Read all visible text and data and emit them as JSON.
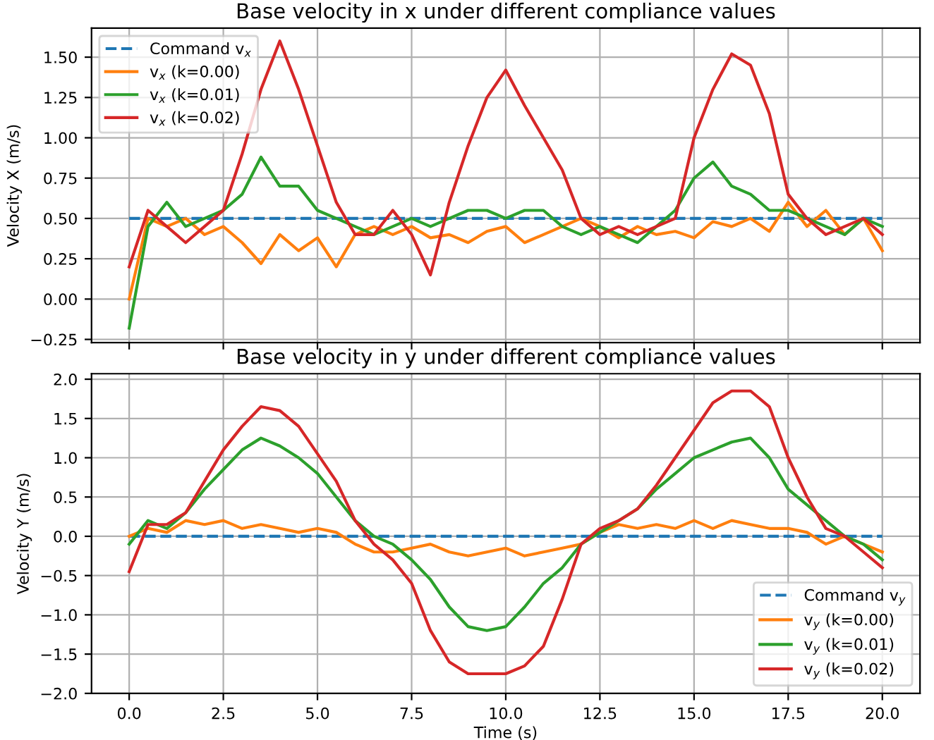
{
  "chart_data": [
    {
      "type": "line",
      "title": "Base velocity in x under different compliance values",
      "ylabel": "Velocity X (m/s)",
      "x": [
        0,
        0.5,
        1,
        1.5,
        2,
        2.5,
        3,
        3.5,
        4,
        4.5,
        5,
        5.5,
        6,
        6.5,
        7,
        7.5,
        8,
        8.5,
        9,
        9.5,
        10,
        10.5,
        11,
        11.5,
        12,
        12.5,
        13,
        13.5,
        14,
        14.5,
        15,
        15.5,
        16,
        16.5,
        17,
        17.5,
        18,
        18.5,
        19,
        19.5,
        20
      ],
      "series": [
        {
          "name": "Command v$_{x}$",
          "color": "#1f77b4",
          "line_style": "dashed",
          "values": [
            0.5,
            0.5,
            0.5,
            0.5,
            0.5,
            0.5,
            0.5,
            0.5,
            0.5,
            0.5,
            0.5,
            0.5,
            0.5,
            0.5,
            0.5,
            0.5,
            0.5,
            0.5,
            0.5,
            0.5,
            0.5,
            0.5,
            0.5,
            0.5,
            0.5,
            0.5,
            0.5,
            0.5,
            0.5,
            0.5,
            0.5,
            0.5,
            0.5,
            0.5,
            0.5,
            0.5,
            0.5,
            0.5,
            0.5,
            0.5,
            0.5
          ]
        },
        {
          "name": "v$_{x}$ (k=0.00)",
          "color": "#ff7f0e",
          "values": [
            0.0,
            0.5,
            0.45,
            0.5,
            0.4,
            0.45,
            0.35,
            0.22,
            0.4,
            0.3,
            0.38,
            0.2,
            0.4,
            0.45,
            0.4,
            0.45,
            0.38,
            0.4,
            0.35,
            0.42,
            0.45,
            0.35,
            0.4,
            0.45,
            0.5,
            0.45,
            0.38,
            0.45,
            0.4,
            0.42,
            0.38,
            0.48,
            0.45,
            0.5,
            0.42,
            0.6,
            0.45,
            0.55,
            0.4,
            0.5,
            0.3
          ]
        },
        {
          "name": "v$_{x}$ (k=0.01)",
          "color": "#2ca02c",
          "values": [
            -0.18,
            0.45,
            0.6,
            0.45,
            0.5,
            0.55,
            0.65,
            0.88,
            0.7,
            0.7,
            0.55,
            0.5,
            0.45,
            0.4,
            0.45,
            0.5,
            0.45,
            0.5,
            0.55,
            0.55,
            0.5,
            0.55,
            0.55,
            0.45,
            0.4,
            0.45,
            0.4,
            0.35,
            0.45,
            0.55,
            0.75,
            0.85,
            0.7,
            0.65,
            0.55,
            0.55,
            0.5,
            0.45,
            0.4,
            0.5,
            0.45
          ]
        },
        {
          "name": "v$_{x}$ (k=0.02)",
          "color": "#d62728",
          "values": [
            0.2,
            0.55,
            0.45,
            0.35,
            0.45,
            0.55,
            0.9,
            1.3,
            1.6,
            1.3,
            0.95,
            0.6,
            0.4,
            0.4,
            0.55,
            0.4,
            0.15,
            0.6,
            0.95,
            1.25,
            1.42,
            1.2,
            1.0,
            0.8,
            0.5,
            0.4,
            0.45,
            0.4,
            0.45,
            0.5,
            1.0,
            1.3,
            1.52,
            1.45,
            1.15,
            0.65,
            0.5,
            0.4,
            0.45,
            0.5,
            0.4
          ]
        }
      ],
      "xlim": [
        -1,
        21
      ],
      "xticks": [
        0,
        2.5,
        5,
        7.5,
        10,
        12.5,
        15,
        17.5,
        20
      ],
      "ylim": [
        -0.27,
        1.68
      ],
      "yticks": [
        {
          "value": -0.25,
          "label": "−0.25"
        },
        {
          "value": 0,
          "label": "0.00"
        },
        0.25,
        {
          "value": 0.5,
          "label": "0.50"
        },
        0.75,
        {
          "value": 1,
          "label": "1.00"
        },
        1.25,
        {
          "value": 1.5,
          "label": "1.50"
        }
      ],
      "tick_labels": "y",
      "grid": true,
      "legend": "top left"
    },
    {
      "type": "line",
      "title": "Base velocity in y under different compliance values",
      "ylabel": "Velocity Y (m/s)",
      "xlabel": "Time (s)",
      "x": [
        0,
        0.5,
        1,
        1.5,
        2,
        2.5,
        3,
        3.5,
        4,
        4.5,
        5,
        5.5,
        6,
        6.5,
        7,
        7.5,
        8,
        8.5,
        9,
        9.5,
        10,
        10.5,
        11,
        11.5,
        12,
        12.5,
        13,
        13.5,
        14,
        14.5,
        15,
        15.5,
        16,
        16.5,
        17,
        17.5,
        18,
        18.5,
        19,
        19.5,
        20
      ],
      "series": [
        {
          "name": "Command v$_{y}$",
          "color": "#1f77b4",
          "line_style": "dashed",
          "values": [
            0,
            0,
            0,
            0,
            0,
            0,
            0,
            0,
            0,
            0,
            0,
            0,
            0,
            0,
            0,
            0,
            0,
            0,
            0,
            0,
            0,
            0,
            0,
            0,
            0,
            0,
            0,
            0,
            0,
            0,
            0,
            0,
            0,
            0,
            0,
            0,
            0,
            0,
            0,
            0,
            0
          ]
        },
        {
          "name": "v$_{y}$ (k=0.00)",
          "color": "#ff7f0e",
          "values": [
            0,
            0.1,
            0.05,
            0.2,
            0.15,
            0.2,
            0.1,
            0.15,
            0.1,
            0.05,
            0.1,
            0.05,
            -0.1,
            -0.2,
            -0.2,
            -0.15,
            -0.1,
            -0.2,
            -0.25,
            -0.2,
            -0.15,
            -0.25,
            -0.2,
            -0.15,
            -0.1,
            0.05,
            0.15,
            0.1,
            0.15,
            0.1,
            0.2,
            0.1,
            0.2,
            0.15,
            0.1,
            0.1,
            0.05,
            -0.1,
            0.0,
            -0.1,
            -0.2
          ]
        },
        {
          "name": "v$_{y}$ (k=0.01)",
          "color": "#2ca02c",
          "values": [
            -0.1,
            0.2,
            0.1,
            0.3,
            0.6,
            0.85,
            1.1,
            1.25,
            1.15,
            1.0,
            0.8,
            0.5,
            0.2,
            0.0,
            -0.1,
            -0.3,
            -0.55,
            -0.9,
            -1.15,
            -1.2,
            -1.15,
            -0.9,
            -0.6,
            -0.4,
            -0.1,
            0.05,
            0.2,
            0.35,
            0.6,
            0.8,
            1.0,
            1.1,
            1.2,
            1.25,
            1.0,
            0.6,
            0.4,
            0.2,
            0.0,
            -0.1,
            -0.3
          ]
        },
        {
          "name": "v$_{y}$ (k=0.02)",
          "color": "#d62728",
          "values": [
            -0.45,
            0.15,
            0.15,
            0.3,
            0.7,
            1.1,
            1.4,
            1.65,
            1.6,
            1.4,
            1.05,
            0.7,
            0.2,
            -0.1,
            -0.3,
            -0.6,
            -1.2,
            -1.6,
            -1.75,
            -1.75,
            -1.75,
            -1.65,
            -1.4,
            -0.8,
            -0.1,
            0.1,
            0.2,
            0.35,
            0.65,
            1.0,
            1.35,
            1.7,
            1.85,
            1.85,
            1.65,
            1.0,
            0.5,
            0.1,
            0.0,
            -0.2,
            -0.4
          ]
        }
      ],
      "xlim": [
        -1,
        21
      ],
      "xticks": [
        {
          "value": 0,
          "label": "0.0"
        },
        2.5,
        {
          "value": 5,
          "label": "5.0"
        },
        7.5,
        {
          "value": 10,
          "label": "10.0"
        },
        12.5,
        {
          "value": 15,
          "label": "15.0"
        },
        17.5,
        {
          "value": 20,
          "label": "20.0"
        }
      ],
      "ylim": [
        -2.0,
        2.07
      ],
      "yticks": [
        {
          "value": -2,
          "label": "−2.0"
        },
        {
          "value": -1.5,
          "label": "−1.5"
        },
        {
          "value": -1,
          "label": "−1.0"
        },
        {
          "value": -0.5,
          "label": "−0.5"
        },
        {
          "value": 0,
          "label": "0.0"
        },
        0.5,
        {
          "value": 1,
          "label": "1.0"
        },
        1.5,
        {
          "value": 2,
          "label": "2.0"
        }
      ],
      "grid": true,
      "legend": "bottom right"
    }
  ]
}
